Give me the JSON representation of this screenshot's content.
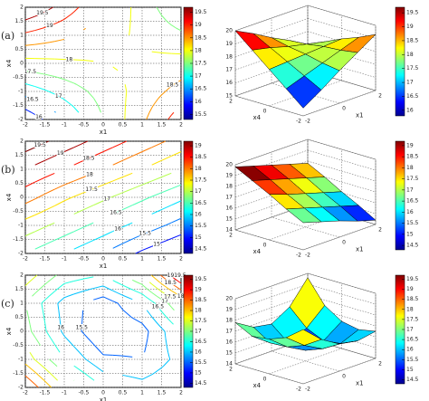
{
  "chart_data": [
    {
      "type": "contour",
      "panel": "(a)",
      "xlabel": "x1",
      "ylabel": "x4",
      "xlim": [
        -2,
        2
      ],
      "ylim": [
        -2,
        2
      ],
      "xticks": [
        -2,
        -1.5,
        -1,
        -0.5,
        0,
        0.5,
        1,
        1.5,
        2
      ],
      "yticks": [
        -2,
        -1.5,
        -1,
        -0.5,
        0,
        0.5,
        1,
        1.5,
        2
      ],
      "grid": true,
      "x": [
        -2,
        -1,
        0,
        1,
        2
      ],
      "y": [
        -2,
        -1,
        0,
        1,
        2
      ],
      "z": [
        [
          15.6,
          16.5,
          17.5,
          18.4,
          19.3
        ],
        [
          16.7,
          17.2,
          17.7,
          18.2,
          18.7
        ],
        [
          17.8,
          17.9,
          18.0,
          18.1,
          18.2
        ],
        [
          18.9,
          18.6,
          18.2,
          17.9,
          17.6
        ],
        [
          20.0,
          19.3,
          18.5,
          17.8,
          17.0
        ]
      ],
      "levels": [
        16,
        16.5,
        17,
        17.5,
        18,
        18.5,
        19,
        19.5
      ],
      "clim": [
        15.3,
        19.7
      ],
      "cticks": [
        15.5,
        16,
        16.5,
        17,
        17.5,
        18,
        18.5,
        19,
        19.5
      ]
    },
    {
      "type": "surface",
      "xlabel": "x1",
      "ylabel": "x4",
      "xticks": [
        -2,
        0,
        2
      ],
      "yticks": [
        -2,
        0,
        2
      ],
      "xlim": [
        -2,
        2
      ],
      "ylim": [
        -2,
        2
      ],
      "zlim": [
        15,
        20
      ],
      "zticks": [
        15,
        16,
        17,
        18,
        19,
        20
      ],
      "z": [
        [
          15.6,
          16.5,
          17.5,
          18.4,
          19.3
        ],
        [
          16.7,
          17.2,
          17.7,
          18.2,
          18.7
        ],
        [
          17.8,
          17.9,
          18.0,
          18.1,
          18.2
        ],
        [
          18.9,
          18.6,
          18.2,
          17.9,
          17.6
        ],
        [
          20.0,
          19.3,
          18.5,
          17.8,
          17.0
        ]
      ],
      "clim": [
        15.8,
        19.7
      ],
      "cticks": [
        16,
        16.5,
        17,
        17.5,
        18,
        18.5,
        19,
        19.5
      ]
    },
    {
      "type": "contour",
      "panel": "(b)",
      "xlabel": "x1",
      "ylabel": "x4",
      "xlim": [
        -2,
        2
      ],
      "ylim": [
        -2,
        2
      ],
      "xticks": [
        -2,
        -1.5,
        -1,
        -0.5,
        0,
        0.5,
        1,
        1.5,
        2
      ],
      "yticks": [
        -2,
        -1.5,
        -1,
        -0.5,
        0,
        0.5,
        1,
        1.5,
        2
      ],
      "grid": true,
      "x": [
        -2,
        -1,
        0,
        1,
        2
      ],
      "y": [
        -2,
        -1,
        0,
        1,
        2
      ],
      "z": [
        [
          16.5,
          16.0,
          15.5,
          14.9,
          14.4
        ],
        [
          17.3,
          16.8,
          16.3,
          15.8,
          15.3
        ],
        [
          18.2,
          17.6,
          17.1,
          16.6,
          16.1
        ],
        [
          19.0,
          18.5,
          18.0,
          17.5,
          17.0
        ],
        [
          19.8,
          19.3,
          18.8,
          18.3,
          17.8
        ]
      ],
      "levels": [
        15,
        15.5,
        16,
        16.5,
        17,
        17.5,
        18,
        18.5,
        19,
        19.5
      ],
      "clim": [
        14.3,
        19.2
      ],
      "cticks": [
        14.5,
        15,
        15.5,
        16,
        16.5,
        17,
        17.5,
        18,
        18.5,
        19
      ]
    },
    {
      "type": "surface",
      "xlabel": "x1",
      "ylabel": "x4",
      "xticks": [
        -2,
        0,
        2
      ],
      "yticks": [
        -2,
        0,
        2
      ],
      "xlim": [
        -2,
        2
      ],
      "ylim": [
        -2,
        2
      ],
      "zlim": [
        14,
        20
      ],
      "zticks": [
        14,
        15,
        16,
        17,
        18,
        19,
        20
      ],
      "z": [
        [
          16.5,
          16.0,
          15.5,
          14.9,
          14.4
        ],
        [
          17.3,
          16.8,
          16.3,
          15.8,
          15.3
        ],
        [
          18.2,
          17.6,
          17.1,
          16.6,
          16.1
        ],
        [
          19.0,
          18.5,
          18.0,
          17.5,
          17.0
        ],
        [
          19.8,
          19.3,
          18.8,
          18.3,
          17.8
        ]
      ],
      "clim": [
        14.3,
        19.2
      ],
      "cticks": [
        14.5,
        15,
        15.5,
        16,
        16.5,
        17,
        17.5,
        18,
        18.5,
        19
      ]
    },
    {
      "type": "contour",
      "panel": "(c)",
      "xlabel": "x1",
      "ylabel": "x4",
      "xlim": [
        -2,
        2
      ],
      "ylim": [
        -2,
        2
      ],
      "xticks": [
        -2,
        -1.5,
        -1,
        -0.5,
        0,
        0.5,
        1,
        1.5,
        2
      ],
      "yticks": [
        -2,
        -1.5,
        -1,
        -0.5,
        0,
        0.5,
        1,
        1.5,
        2
      ],
      "grid": true,
      "x": [
        -2,
        -1,
        0,
        1,
        2
      ],
      "y": [
        -2,
        -1,
        0,
        1,
        2
      ],
      "z": [
        [
          19.0,
          17.5,
          16.5,
          16.2,
          16.5
        ],
        [
          17.8,
          16.5,
          15.6,
          15.5,
          16.2
        ],
        [
          17.2,
          15.9,
          15.0,
          15.3,
          16.5
        ],
        [
          17.0,
          15.8,
          15.2,
          16.0,
          17.5
        ],
        [
          17.8,
          16.8,
          16.5,
          17.5,
          19.6
        ]
      ],
      "levels": [
        15,
        15.5,
        16,
        16.5,
        17,
        17.5,
        18,
        18.5,
        19,
        19.5
      ],
      "clim": [
        14.3,
        19.7
      ],
      "cticks": [
        14.5,
        15,
        15.5,
        16,
        16.5,
        17,
        17.5,
        18,
        18.5,
        19,
        19.5
      ]
    },
    {
      "type": "surface",
      "xlabel": "x1",
      "ylabel": "x4",
      "xticks": [
        -2,
        0,
        2
      ],
      "yticks": [
        -2,
        0,
        2
      ],
      "xlim": [
        -2,
        2
      ],
      "ylim": [
        -2,
        2
      ],
      "zlim": [
        14,
        20
      ],
      "zticks": [
        14,
        15,
        16,
        17,
        18,
        19,
        20
      ],
      "z": [
        [
          19.0,
          17.5,
          16.5,
          16.2,
          16.5
        ],
        [
          17.8,
          16.5,
          15.6,
          15.5,
          16.2
        ],
        [
          17.2,
          15.9,
          15.0,
          15.3,
          16.5
        ],
        [
          17.0,
          15.8,
          15.2,
          16.0,
          17.5
        ],
        [
          17.8,
          16.8,
          16.5,
          17.5,
          19.6
        ]
      ],
      "clim": [
        14.3,
        19.7
      ],
      "cticks": [
        14.5,
        15,
        15.5,
        16,
        16.5,
        17,
        17.5,
        18,
        18.5,
        19,
        19.5
      ]
    }
  ]
}
